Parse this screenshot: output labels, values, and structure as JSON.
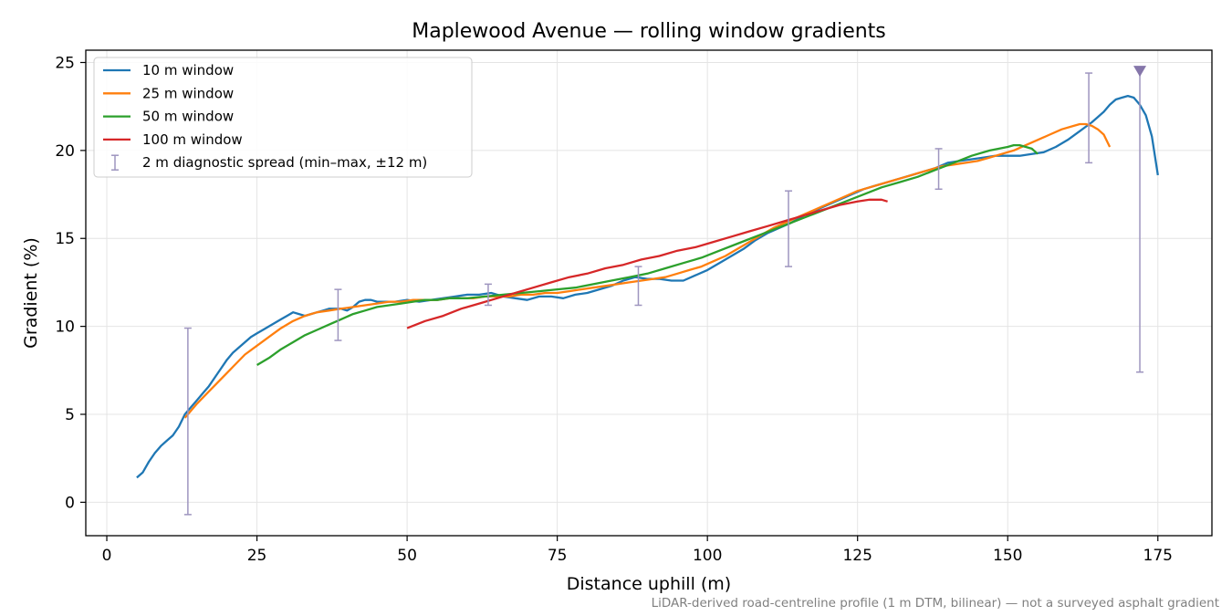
{
  "chart_data": {
    "type": "line",
    "title": "Maplewood Avenue — rolling window gradients",
    "xlabel": "Distance uphill (m)",
    "ylabel": "Gradient (%)",
    "xlim": [
      -3.5,
      184
    ],
    "ylim": [
      -1.9,
      25.7
    ],
    "xticks": [
      0,
      25,
      50,
      75,
      100,
      125,
      150,
      175
    ],
    "yticks": [
      0,
      5,
      10,
      15,
      20,
      25
    ],
    "grid": true,
    "legend_position": "top-left",
    "footnote": "LiDAR-derived road-centreline profile (1 m DTM, bilinear) — not a surveyed asphalt gradient",
    "series": [
      {
        "name": "10 m window",
        "color": "#1f77b4",
        "x": [
          5,
          6,
          7,
          8,
          9,
          10,
          11,
          12,
          13,
          14,
          15,
          16,
          17,
          18,
          19,
          20,
          21,
          22,
          23,
          24,
          25,
          26,
          27,
          28,
          29,
          30,
          31,
          32,
          33,
          34,
          35,
          36,
          37,
          38,
          39,
          40,
          41,
          42,
          43,
          44,
          45,
          46,
          47,
          48,
          50,
          52,
          54,
          56,
          58,
          60,
          62,
          64,
          66,
          68,
          70,
          72,
          74,
          76,
          78,
          80,
          82,
          84,
          86,
          88,
          90,
          92,
          94,
          96,
          98,
          100,
          102,
          104,
          106,
          108,
          110,
          112,
          114,
          116,
          118,
          120,
          122,
          124,
          126,
          128,
          130,
          132,
          134,
          136,
          138,
          140,
          142,
          144,
          146,
          148,
          150,
          152,
          154,
          156,
          158,
          160,
          162,
          164,
          165,
          166,
          167,
          168,
          169,
          170,
          171,
          172,
          173,
          174,
          175
        ],
        "y": [
          1.4,
          1.7,
          2.3,
          2.8,
          3.2,
          3.5,
          3.8,
          4.3,
          5.0,
          5.4,
          5.8,
          6.2,
          6.6,
          7.1,
          7.6,
          8.1,
          8.5,
          8.8,
          9.1,
          9.4,
          9.6,
          9.8,
          10.0,
          10.2,
          10.4,
          10.6,
          10.8,
          10.7,
          10.6,
          10.7,
          10.8,
          10.9,
          11.0,
          11.0,
          11.0,
          10.9,
          11.1,
          11.4,
          11.5,
          11.5,
          11.4,
          11.4,
          11.4,
          11.4,
          11.5,
          11.4,
          11.5,
          11.6,
          11.7,
          11.8,
          11.8,
          11.9,
          11.7,
          11.6,
          11.5,
          11.7,
          11.7,
          11.6,
          11.8,
          11.9,
          12.1,
          12.3,
          12.6,
          12.8,
          12.7,
          12.7,
          12.6,
          12.6,
          12.9,
          13.2,
          13.6,
          14.0,
          14.4,
          14.9,
          15.3,
          15.6,
          15.9,
          16.3,
          16.6,
          16.9,
          17.2,
          17.5,
          17.8,
          18.0,
          18.2,
          18.4,
          18.6,
          18.8,
          19.0,
          19.3,
          19.4,
          19.5,
          19.6,
          19.7,
          19.7,
          19.7,
          19.8,
          19.9,
          20.2,
          20.6,
          21.1,
          21.6,
          21.9,
          22.2,
          22.6,
          22.9,
          23.0,
          23.1,
          23.0,
          22.6,
          22.0,
          20.8,
          18.6
        ]
      },
      {
        "name": "25 m window",
        "color": "#ff7f0e",
        "x": [
          13,
          15,
          17,
          19,
          21,
          23,
          25,
          27,
          29,
          31,
          33,
          35,
          37,
          39,
          41,
          43,
          45,
          47,
          49,
          51,
          53,
          55,
          57,
          59,
          61,
          63,
          65,
          67,
          69,
          71,
          73,
          75,
          77,
          79,
          81,
          83,
          85,
          87,
          89,
          91,
          93,
          95,
          97,
          99,
          101,
          103,
          105,
          107,
          109,
          111,
          113,
          115,
          117,
          119,
          121,
          123,
          125,
          127,
          129,
          131,
          133,
          135,
          137,
          139,
          141,
          143,
          145,
          147,
          149,
          151,
          153,
          155,
          157,
          159,
          161,
          162,
          163,
          164,
          165,
          166,
          167
        ],
        "y": [
          4.8,
          5.6,
          6.3,
          7.0,
          7.7,
          8.4,
          8.9,
          9.4,
          9.9,
          10.3,
          10.6,
          10.8,
          10.9,
          11.0,
          11.1,
          11.2,
          11.3,
          11.4,
          11.4,
          11.5,
          11.5,
          11.5,
          11.6,
          11.6,
          11.6,
          11.7,
          11.7,
          11.7,
          11.8,
          11.8,
          11.9,
          11.9,
          12.0,
          12.1,
          12.2,
          12.3,
          12.4,
          12.5,
          12.6,
          12.7,
          12.8,
          13.0,
          13.2,
          13.4,
          13.7,
          14.0,
          14.4,
          14.8,
          15.2,
          15.6,
          15.9,
          16.2,
          16.5,
          16.8,
          17.1,
          17.4,
          17.7,
          17.9,
          18.1,
          18.3,
          18.5,
          18.7,
          18.9,
          19.1,
          19.2,
          19.3,
          19.4,
          19.6,
          19.8,
          20.0,
          20.3,
          20.6,
          20.9,
          21.2,
          21.4,
          21.5,
          21.5,
          21.4,
          21.2,
          20.9,
          20.2
        ]
      },
      {
        "name": "50 m window",
        "color": "#2ca02c",
        "x": [
          25,
          27,
          29,
          31,
          33,
          35,
          37,
          39,
          41,
          43,
          45,
          47,
          49,
          51,
          53,
          55,
          57,
          60,
          63,
          66,
          69,
          72,
          75,
          78,
          81,
          84,
          87,
          90,
          93,
          96,
          99,
          102,
          105,
          108,
          111,
          114,
          117,
          120,
          123,
          126,
          129,
          132,
          135,
          138,
          141,
          144,
          147,
          150,
          151,
          152,
          153,
          154,
          155
        ],
        "y": [
          7.8,
          8.2,
          8.7,
          9.1,
          9.5,
          9.8,
          10.1,
          10.4,
          10.7,
          10.9,
          11.1,
          11.2,
          11.3,
          11.4,
          11.5,
          11.5,
          11.6,
          11.6,
          11.7,
          11.8,
          11.9,
          12.0,
          12.1,
          12.2,
          12.4,
          12.6,
          12.8,
          13.0,
          13.3,
          13.6,
          13.9,
          14.3,
          14.7,
          15.1,
          15.5,
          15.9,
          16.3,
          16.7,
          17.1,
          17.5,
          17.9,
          18.2,
          18.5,
          18.9,
          19.3,
          19.7,
          20.0,
          20.2,
          20.3,
          20.3,
          20.2,
          20.1,
          19.8
        ]
      },
      {
        "name": "100 m window",
        "color": "#d62728",
        "x": [
          50,
          53,
          56,
          59,
          62,
          65,
          68,
          71,
          74,
          77,
          80,
          83,
          86,
          89,
          92,
          95,
          98,
          101,
          104,
          107,
          110,
          113,
          116,
          119,
          122,
          125,
          127,
          128,
          129,
          130
        ],
        "y": [
          9.9,
          10.3,
          10.6,
          11.0,
          11.3,
          11.6,
          11.9,
          12.2,
          12.5,
          12.8,
          13.0,
          13.3,
          13.5,
          13.8,
          14.0,
          14.3,
          14.5,
          14.8,
          15.1,
          15.4,
          15.7,
          16.0,
          16.3,
          16.6,
          16.9,
          17.1,
          17.2,
          17.2,
          17.2,
          17.1
        ]
      }
    ],
    "errorbars": {
      "name": "2 m diagnostic spread (min–max, ±12 m)",
      "color": "#9e95bf",
      "points": [
        {
          "x": 13.5,
          "low": -0.7,
          "high": 9.9
        },
        {
          "x": 38.5,
          "low": 9.2,
          "high": 12.1
        },
        {
          "x": 63.5,
          "low": 11.2,
          "high": 12.4
        },
        {
          "x": 88.5,
          "low": 11.2,
          "high": 13.4
        },
        {
          "x": 113.5,
          "low": 13.4,
          "high": 17.7
        },
        {
          "x": 138.5,
          "low": 17.8,
          "high": 20.1
        },
        {
          "x": 163.5,
          "low": 19.3,
          "high": 24.4
        },
        {
          "x": 172,
          "low": 7.4,
          "high": 24.5,
          "clipped_marker": true
        }
      ]
    }
  }
}
